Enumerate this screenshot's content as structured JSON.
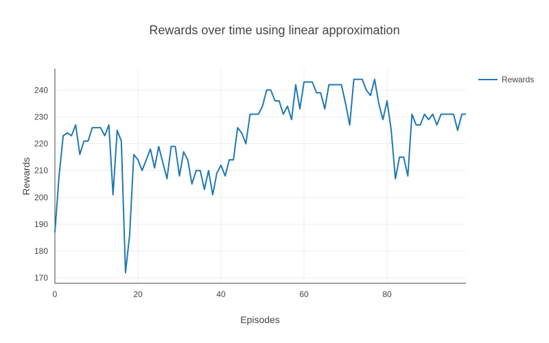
{
  "chart_data": {
    "type": "line",
    "title": "Rewards over time using linear approximation",
    "xlabel": "Episodes",
    "ylabel": "Rewards",
    "xlim": [
      0,
      99
    ],
    "ylim": [
      168,
      248
    ],
    "x_ticks": [
      0,
      20,
      40,
      60,
      80
    ],
    "y_ticks": [
      170,
      180,
      190,
      200,
      210,
      220,
      230,
      240
    ],
    "x_tick_labels": [
      "0",
      "20",
      "40",
      "60",
      "80"
    ],
    "y_tick_labels": [
      "170",
      "180",
      "190",
      "200",
      "210",
      "220",
      "230",
      "240"
    ],
    "grid": true,
    "legend_position": "top-right",
    "series": [
      {
        "name": "Rewards",
        "color": "#1f77b4",
        "x": [
          0,
          1,
          2,
          3,
          4,
          5,
          6,
          7,
          8,
          9,
          10,
          11,
          12,
          13,
          14,
          15,
          16,
          17,
          18,
          19,
          20,
          21,
          22,
          23,
          24,
          25,
          26,
          27,
          28,
          29,
          30,
          31,
          32,
          33,
          34,
          35,
          36,
          37,
          38,
          39,
          40,
          41,
          42,
          43,
          44,
          45,
          46,
          47,
          48,
          49,
          50,
          51,
          52,
          53,
          54,
          55,
          56,
          57,
          58,
          59,
          60,
          61,
          62,
          63,
          64,
          65,
          66,
          67,
          68,
          69,
          70,
          71,
          72,
          73,
          74,
          75,
          76,
          77,
          78,
          79,
          80,
          81,
          82,
          83,
          84,
          85,
          86,
          87,
          88,
          89,
          90,
          91,
          92,
          93,
          94,
          95,
          96,
          97,
          98,
          99
        ],
        "values": [
          187,
          208,
          223,
          224,
          223,
          227,
          216,
          221,
          221,
          226,
          226,
          226,
          223,
          227,
          201,
          225,
          221,
          172,
          186,
          216,
          214,
          210,
          214,
          218,
          211,
          219,
          213,
          207,
          219,
          219,
          208,
          217,
          214,
          205,
          210,
          210,
          203,
          210,
          201,
          209,
          212,
          208,
          214,
          214,
          226,
          224,
          220,
          231,
          231,
          231,
          234,
          240,
          240,
          236,
          236,
          231,
          234,
          229,
          242,
          233,
          243,
          243,
          243,
          239,
          239,
          233,
          242,
          242,
          242,
          242,
          235,
          227,
          244,
          244,
          244,
          240,
          238,
          244,
          235,
          229,
          236,
          225,
          207,
          215,
          215,
          208,
          231,
          227,
          227,
          231,
          229,
          231,
          227,
          231,
          231,
          231,
          231,
          225,
          231,
          231
        ]
      }
    ]
  }
}
